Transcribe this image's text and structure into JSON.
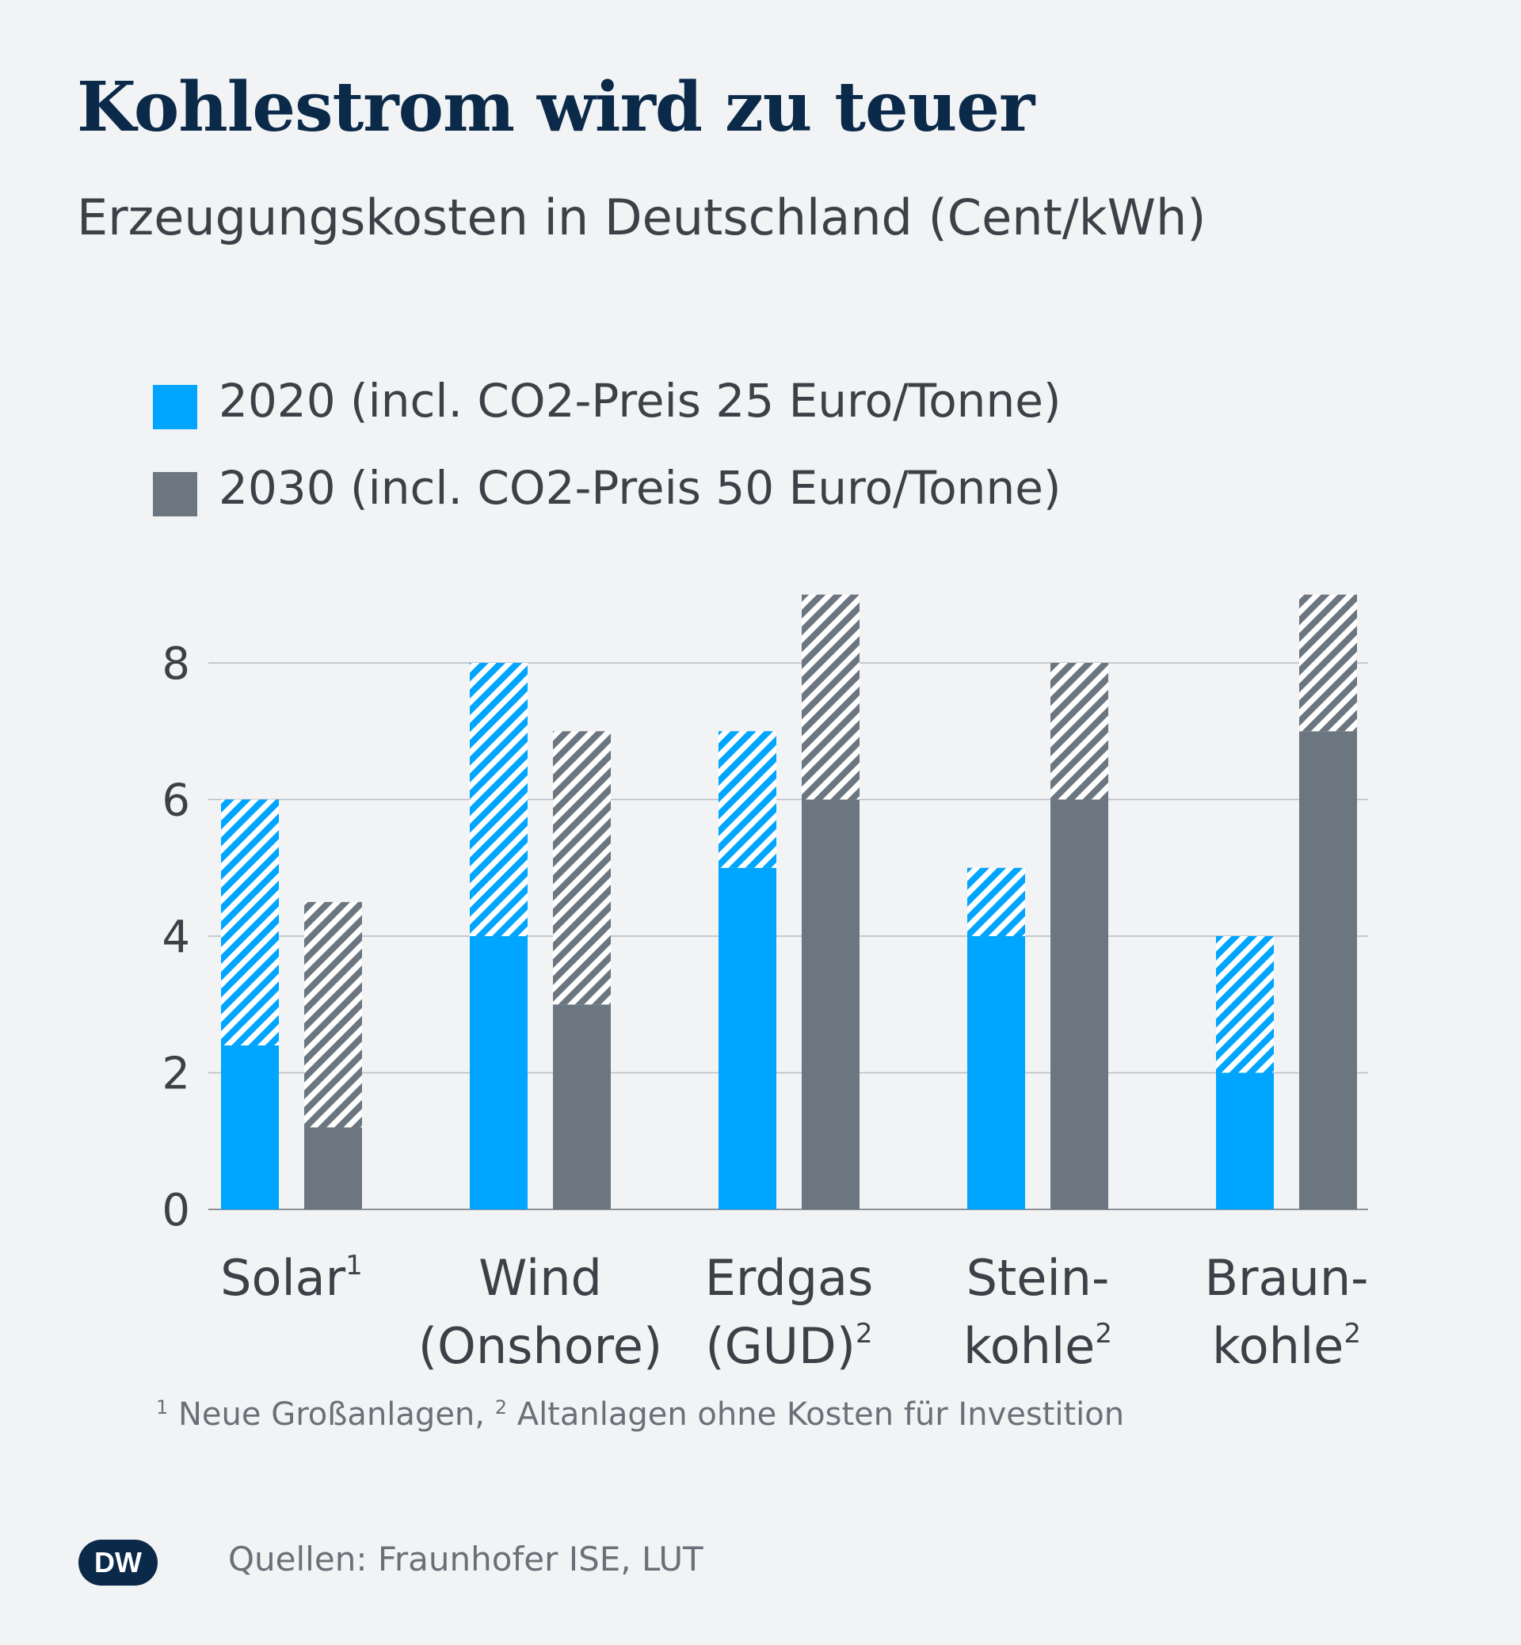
{
  "title": "Kohlestrom wird zu teuer",
  "subtitle": "Erzeugungskosten in Deutschland (Cent/kWh)",
  "colors": {
    "s2020": "#00a5ff",
    "s2030": "#6c7680",
    "grid": "#b7bbc0",
    "axis": "#8d9298"
  },
  "legend": [
    {
      "label": "2020 (incl. CO2-Preis 25 Euro/Tonne)",
      "color": "#00a5ff"
    },
    {
      "label": "2030 (incl. CO2-Preis 50 Euro/Tonne)",
      "color": "#6c7680"
    }
  ],
  "chart_data": {
    "type": "bar",
    "title": "Kohlestrom wird zu teuer",
    "subtitle": "Erzeugungskosten in Deutschland (Cent/kWh)",
    "ylim": [
      0,
      9
    ],
    "yticks": [
      0,
      2,
      4,
      6,
      8
    ],
    "grid": true,
    "legend_position": "top-left",
    "categories": [
      {
        "lines": [
          "Solar"
        ],
        "sup": "1"
      },
      {
        "lines": [
          "Wind",
          "(Onshore)"
        ],
        "sup": ""
      },
      {
        "lines": [
          "Erdgas",
          "(GUD)"
        ],
        "sup": "2"
      },
      {
        "lines": [
          "Stein-",
          "kohle"
        ],
        "sup": "2"
      },
      {
        "lines": [
          "Braun-",
          "kohle"
        ],
        "sup": "2"
      }
    ],
    "series": [
      {
        "name": "2020 (incl. CO2-Preis 25 Euro/Tonne)",
        "low": [
          2.4,
          4,
          5,
          4,
          2
        ],
        "high": [
          6,
          8,
          7,
          5,
          4
        ]
      },
      {
        "name": "2030 (incl. CO2-Preis 50 Euro/Tonne)",
        "low": [
          1.2,
          3,
          6,
          6,
          7
        ],
        "high": [
          4.5,
          7,
          9,
          8,
          9
        ]
      }
    ]
  },
  "footnote": {
    "sup1": "1",
    "text1": " Neue Großanlagen, ",
    "sup2": "2",
    "text2": " Altanlagen ohne Kosten für Investition"
  },
  "logo": "DW",
  "source": "Quellen: Fraunhofer ISE, LUT"
}
